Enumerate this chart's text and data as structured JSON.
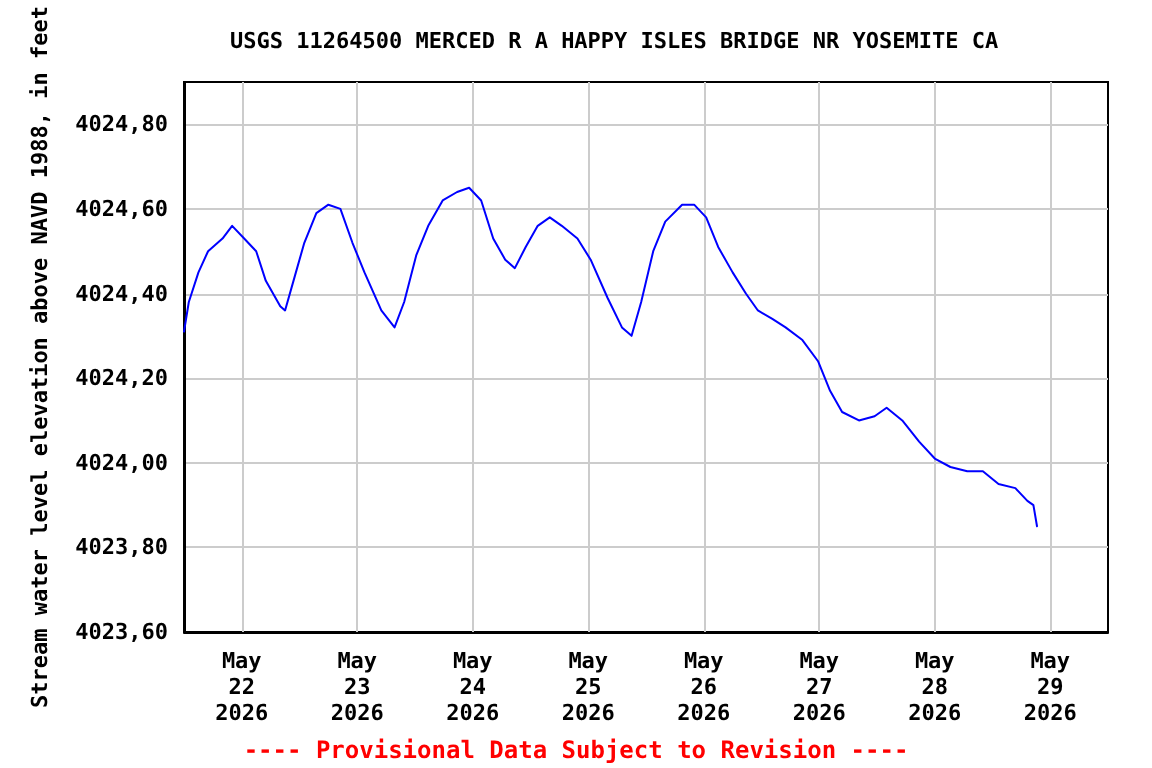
{
  "chart_data": {
    "type": "line",
    "title": "USGS 11264500 MERCED R A HAPPY ISLES BRIDGE NR YOSEMITE CA",
    "ylabel": "Stream water level elevation above NAVD 1988, in feet",
    "annotations": [
      "---- Provisional Data Subject to Revision ----"
    ],
    "x": [
      "2026-05-21T12:00",
      "2026-05-21T13:00",
      "2026-05-21T15:00",
      "2026-05-21T17:00",
      "2026-05-21T20:00",
      "2026-05-21T22:00",
      "2026-05-22T00:30",
      "2026-05-22T03:00",
      "2026-05-22T05:00",
      "2026-05-22T08:00",
      "2026-05-22T09:00",
      "2026-05-22T11:00",
      "2026-05-22T13:00",
      "2026-05-22T15:30",
      "2026-05-22T18:00",
      "2026-05-22T20:30",
      "2026-05-22T23:00",
      "2026-05-23T01:30",
      "2026-05-23T05:00",
      "2026-05-23T07:45",
      "2026-05-23T09:45",
      "2026-05-23T12:15",
      "2026-05-23T14:45",
      "2026-05-23T17:45",
      "2026-05-23T20:45",
      "2026-05-23T23:15",
      "2026-05-24T01:45",
      "2026-05-24T04:15",
      "2026-05-24T06:45",
      "2026-05-24T08:45",
      "2026-05-24T11:00",
      "2026-05-24T13:30",
      "2026-05-24T16:00",
      "2026-05-24T18:30",
      "2026-05-24T21:45",
      "2026-05-25T00:30",
      "2026-05-25T04:00",
      "2026-05-25T07:00",
      "2026-05-25T09:00",
      "2026-05-25T11:00",
      "2026-05-25T13:30",
      "2026-05-25T16:00",
      "2026-05-25T19:30",
      "2026-05-25T22:00",
      "2026-05-26T00:30",
      "2026-05-26T03:00",
      "2026-05-26T06:00",
      "2026-05-26T08:45",
      "2026-05-26T11:15",
      "2026-05-26T14:15",
      "2026-05-26T17:00",
      "2026-05-26T20:30",
      "2026-05-26T23:45",
      "2026-05-27T02:15",
      "2026-05-27T04:45",
      "2026-05-27T08:15",
      "2026-05-27T11:30",
      "2026-05-27T14:00",
      "2026-05-27T17:15",
      "2026-05-27T20:45",
      "2026-05-28T00:00",
      "2026-05-28T03:15",
      "2026-05-28T06:45",
      "2026-05-28T10:00",
      "2026-05-28T13:15",
      "2026-05-28T16:45",
      "2026-05-28T19:15",
      "2026-05-28T20:30",
      "2026-05-28T21:15"
    ],
    "series": [
      {
        "color": "#0000ff",
        "values": [
          4024.31,
          4024.38,
          4024.45,
          4024.5,
          4024.53,
          4024.56,
          4024.53,
          4024.5,
          4024.43,
          4024.37,
          4024.36,
          4024.44,
          4024.52,
          4024.59,
          4024.61,
          4024.6,
          4024.52,
          4024.45,
          4024.36,
          4024.32,
          4024.38,
          4024.49,
          4024.56,
          4024.62,
          4024.64,
          4024.65,
          4024.62,
          4024.53,
          4024.48,
          4024.46,
          4024.51,
          4024.56,
          4024.58,
          4024.56,
          4024.53,
          4024.48,
          4024.39,
          4024.32,
          4024.3,
          4024.38,
          4024.5,
          4024.57,
          4024.61,
          4024.61,
          4024.58,
          4024.51,
          4024.45,
          4024.4,
          4024.36,
          4024.34,
          4024.32,
          4024.29,
          4024.24,
          4024.17,
          4024.12,
          4024.1,
          4024.11,
          4024.13,
          4024.1,
          4024.05,
          4024.01,
          4023.99,
          4023.98,
          4023.98,
          4023.95,
          4023.94,
          4023.91,
          4023.9,
          4023.85
        ]
      }
    ],
    "xlim": [
      "2026-05-21T12:00",
      "2026-05-29T12:00"
    ],
    "xticks": [
      {
        "value": "2026-05-22",
        "label": "May\n22\n2026"
      },
      {
        "value": "2026-05-23",
        "label": "May\n23\n2026"
      },
      {
        "value": "2026-05-24",
        "label": "May\n24\n2026"
      },
      {
        "value": "2026-05-25",
        "label": "May\n25\n2026"
      },
      {
        "value": "2026-05-26",
        "label": "May\n26\n2026"
      },
      {
        "value": "2026-05-27",
        "label": "May\n27\n2026"
      },
      {
        "value": "2026-05-28",
        "label": "May\n28\n2026"
      },
      {
        "value": "2026-05-29",
        "label": "May\n29\n2026"
      }
    ],
    "ylim": [
      4023.6,
      4024.9
    ],
    "yticks": [
      {
        "value": 4023.6,
        "label": "4023,60"
      },
      {
        "value": 4023.8,
        "label": "4023,80"
      },
      {
        "value": 4024.0,
        "label": "4024,00"
      },
      {
        "value": 4024.2,
        "label": "4024,20"
      },
      {
        "value": 4024.4,
        "label": "4024,40"
      },
      {
        "value": 4024.6,
        "label": "4024,60"
      },
      {
        "value": 4024.8,
        "label": "4024,80"
      }
    ],
    "grid": true,
    "line_style": "solid",
    "marker": "none"
  }
}
